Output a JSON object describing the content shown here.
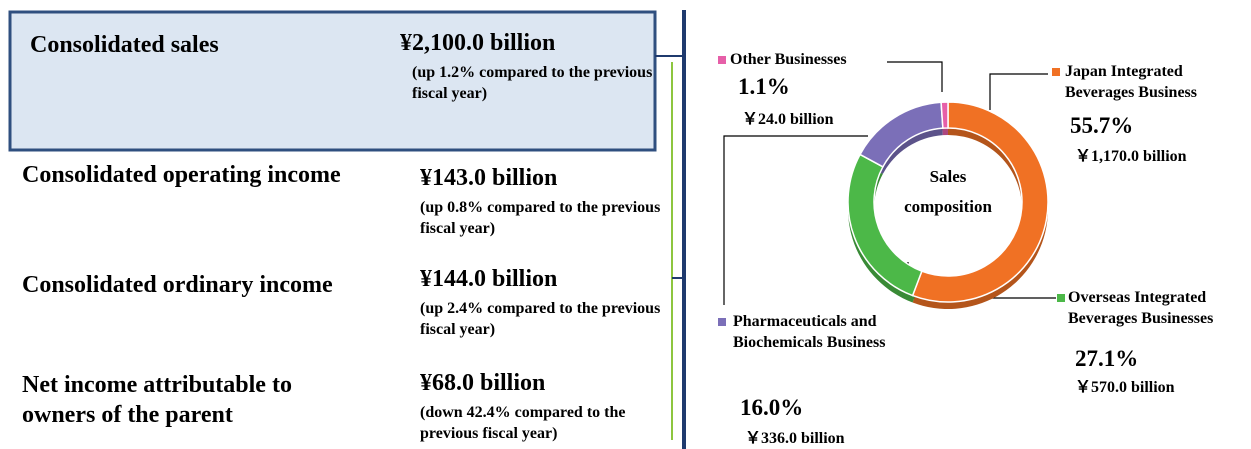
{
  "metrics": [
    {
      "label": "Consolidated sales",
      "value": "¥2,100.0 billion",
      "note": "(up 1.2% compared to the previous fiscal year)"
    },
    {
      "label": "Consolidated operating income",
      "value": "¥143.0 billion",
      "note": "(up 0.8% compared to the previous fiscal year)"
    },
    {
      "label": "Consolidated ordinary income",
      "value": "¥144.0 billion",
      "note": "(up 2.4% compared to the previous fiscal year)"
    },
    {
      "label": "Net income attributable to owners of the parent",
      "value": "¥68.0 billion",
      "note": "(down 42.4% compared to the previous fiscal year)"
    }
  ],
  "chart_data": {
    "type": "pie",
    "donut": true,
    "center_label": [
      "Sales",
      "composition"
    ],
    "categories": [
      "Japan Integrated Beverages Business",
      "Overseas Integrated Beverages Businesses",
      "Pharmaceuticals and Biochemicals Business",
      "Other Businesses"
    ],
    "values": [
      55.7,
      27.1,
      16.0,
      1.1
    ],
    "value_labels": [
      "55.7%",
      "27.1%",
      "16.0%",
      "1.1%"
    ],
    "amount_labels": [
      "￥1,170.0 billion",
      "￥570.0 billion",
      "￥336.0 billion",
      "￥24.0 billion"
    ],
    "colors": [
      "#f07124",
      "#4cb848",
      "#7b6fb8",
      "#e65fa8"
    ]
  }
}
